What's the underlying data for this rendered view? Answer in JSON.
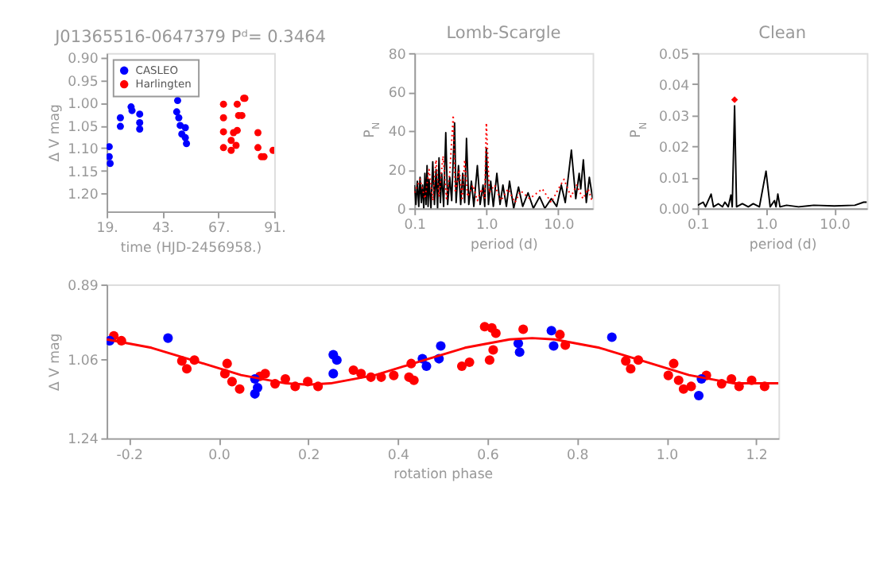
{
  "chart_data": [
    {
      "type": "scatter",
      "title": "J01365516-0647379 Pᵈ= 0.3464",
      "xlabel": "time (HJD-2456958.)",
      "ylabel": "Δ V mag",
      "xlim": [
        19,
        91
      ],
      "xticks": [
        {
          "value": 19,
          "label": "19."
        },
        {
          "value": 43,
          "label": "43."
        },
        {
          "value": 67,
          "label": "67."
        },
        {
          "value": 91,
          "label": "91."
        }
      ],
      "ylim": [
        1.24,
        0.89
      ],
      "yticks": [
        {
          "value": 0.9,
          "label": "0.90"
        },
        0.95,
        {
          "value": 1.0,
          "label": "1.00"
        },
        1.05,
        {
          "value": 1.1,
          "label": "1.10"
        },
        1.15,
        {
          "value": 1.2,
          "label": "1.20"
        }
      ],
      "legend": "top left",
      "marker": "circle",
      "grid": false,
      "series": [
        {
          "name": "CASLEO",
          "color": "#0000ff",
          "x": [
            20.1,
            20.1,
            20.5,
            24.9,
            24.9,
            29.5,
            29.9,
            33.2,
            33.2,
            33.2,
            49.5,
            49.1,
            50.0,
            50.6,
            51.3,
            52.8,
            52.8,
            53.3
          ],
          "values": [
            1.097,
            1.119,
            1.134,
            1.033,
            1.052,
            1.009,
            1.017,
            1.025,
            1.044,
            1.058,
            0.995,
            1.02,
            1.033,
            1.05,
            1.069,
            1.055,
            1.077,
            1.09
          ]
        },
        {
          "name": "Harlingten",
          "color": "#ff0000",
          "x": [
            69.2,
            69.2,
            69.2,
            69.2,
            72.5,
            72.5,
            73.5,
            75.1,
            75.7,
            75.1,
            74.6,
            77.9,
            77.1,
            78.4,
            84.0,
            84.0,
            85.5,
            86.6,
            90.5
          ],
          "values": [
            1.003,
            1.033,
            1.064,
            1.099,
            1.083,
            1.105,
            1.066,
            1.003,
            1.028,
            1.061,
            1.094,
            0.99,
            1.028,
            0.99,
            1.066,
            1.099,
            1.119,
            1.119,
            1.105
          ]
        }
      ]
    },
    {
      "type": "line",
      "title": "Lomb-Scargle",
      "xlabel": "period (d)",
      "ylabel": "P$_{N}$",
      "log": "x",
      "xlim": [
        0.1,
        30
      ],
      "xticks": [
        0.1,
        {
          "value": 1,
          "label": "1.0"
        },
        {
          "value": 10,
          "label": "10.0"
        }
      ],
      "ylim": [
        0,
        80
      ],
      "yticks": [
        0,
        20,
        40,
        60,
        80
      ],
      "grid": false,
      "series": [
        {
          "color": "#000000",
          "line_style": "solid",
          "x": [
            0.1,
            0.105,
            0.11,
            0.115,
            0.12,
            0.125,
            0.13,
            0.135,
            0.14,
            0.145,
            0.15,
            0.155,
            0.16,
            0.17,
            0.18,
            0.19,
            0.2,
            0.21,
            0.22,
            0.23,
            0.24,
            0.255,
            0.273,
            0.29,
            0.31,
            0.33,
            0.362,
            0.38,
            0.41,
            0.44,
            0.47,
            0.5,
            0.53,
            0.57,
            0.62,
            0.67,
            0.75,
            0.82,
            0.9,
            0.95,
            1.0,
            1.07,
            1.15,
            1.25,
            1.4,
            1.55,
            1.7,
            1.9,
            2.1,
            2.4,
            2.8,
            3.2,
            3.8,
            4.5,
            5.5,
            6.5,
            8,
            9.5,
            11,
            12.5,
            15.2,
            17.5,
            19.5,
            20.5,
            22.3,
            24.5,
            27,
            30
          ],
          "values": [
            12,
            2,
            14,
            1,
            16,
            3,
            12,
            0,
            18,
            2,
            22,
            1,
            15,
            0,
            24,
            2,
            20,
            0,
            26,
            3,
            18,
            1,
            39,
            2,
            16,
            4,
            44,
            3,
            22,
            2,
            18,
            3,
            36,
            2,
            14,
            1,
            22,
            2,
            12,
            1,
            31,
            2,
            14,
            1,
            18,
            2,
            12,
            1,
            14,
            0,
            11,
            1,
            8,
            0,
            6,
            0,
            5,
            1,
            12,
            3,
            30,
            5,
            18,
            10,
            25,
            3,
            16,
            5
          ]
        },
        {
          "color": "#ff0000",
          "line_style": "dotted",
          "x": [
            0.1,
            0.12,
            0.14,
            0.16,
            0.18,
            0.2,
            0.22,
            0.25,
            0.28,
            0.31,
            0.3464,
            0.37,
            0.42,
            0.46,
            0.5,
            0.55,
            0.65,
            0.75,
            0.85,
            0.95,
            1.0,
            1.1,
            1.3,
            1.6,
            2,
            2.5,
            3,
            4,
            6,
            8,
            10,
            12,
            15,
            18,
            22,
            26,
            30
          ],
          "values": [
            8,
            15,
            5,
            20,
            4,
            25,
            6,
            27,
            5,
            18,
            48,
            8,
            20,
            4,
            25,
            6,
            12,
            4,
            10,
            5,
            44,
            8,
            12,
            4,
            10,
            3,
            9,
            5,
            10,
            3,
            10,
            15,
            6,
            12,
            5,
            10,
            3
          ]
        }
      ]
    },
    {
      "type": "line",
      "title": "Clean",
      "xlabel": "period (d)",
      "ylabel": "P$_{N}$",
      "log": "x",
      "xlim": [
        0.1,
        30
      ],
      "xticks": [
        0.1,
        {
          "value": 1,
          "label": "1.0"
        },
        {
          "value": 10,
          "label": "10.0"
        }
      ],
      "ylim": [
        0,
        0.05
      ],
      "yticks": [
        {
          "value": 0,
          "label": "0.00"
        },
        0.01,
        0.02,
        0.03,
        0.04,
        0.05
      ],
      "grid": false,
      "series": [
        {
          "color": "#000000",
          "line_style": "solid",
          "x": [
            0.1,
            0.12,
            0.13,
            0.157,
            0.17,
            0.2,
            0.23,
            0.25,
            0.28,
            0.306,
            0.32,
            0.3464,
            0.37,
            0.45,
            0.55,
            0.65,
            0.8,
            1.0,
            1.15,
            1.33,
            1.4,
            1.49,
            1.6,
            2,
            3,
            5,
            10,
            20,
            27,
            30
          ],
          "values": [
            0.001,
            0.002,
            0.0005,
            0.0046,
            0.0005,
            0.0015,
            0.0005,
            0.002,
            0.0005,
            0.0043,
            0.0005,
            0.033,
            0.0005,
            0.0015,
            0.0005,
            0.0015,
            0.0005,
            0.012,
            0.0005,
            0.0025,
            0.0005,
            0.0046,
            0.0005,
            0.001,
            0.0005,
            0.001,
            0.0008,
            0.001,
            0.002,
            0.002
          ]
        },
        {
          "type": "scatter",
          "marker": "diamond",
          "color": "#ff0000",
          "x": [
            0.3464
          ],
          "values": [
            0.035
          ]
        }
      ]
    },
    {
      "type": "scatter",
      "xlabel": "rotation phase",
      "ylabel": "Δ V mag",
      "xlim": [
        -0.25,
        1.25
      ],
      "xticks": [
        -0.2,
        {
          "value": 0,
          "label": "0.0"
        },
        0.2,
        0.4,
        0.6,
        0.8,
        {
          "value": 1,
          "label": "1.0"
        },
        1.2
      ],
      "ylim": [
        1.24,
        0.89
      ],
      "yticks": [
        0.89,
        1.06,
        1.24
      ],
      "marker": "circle",
      "grid": false,
      "series": [
        {
          "color": "#ff0000",
          "x": [
            -0.234,
            -0.217,
            -0.082,
            -0.071,
            -0.054,
            0.019,
            0.014,
            0.03,
            0.047,
            0.092,
            0.104,
            0.149,
            0.126,
            0.171,
            0.199,
            0.222,
            0.301,
            0.318,
            0.34,
            0.363,
            0.391,
            0.425,
            0.436,
            0.43,
            0.543,
            0.56,
            0.594,
            0.61,
            0.619,
            0.605,
            0.613,
            0.68,
            0.762,
            0.774,
            0.909,
            0.92,
            0.937,
            1.004,
            1.016,
            1.027,
            1.038,
            1.055,
            1.089,
            1.123,
            1.145,
            1.162,
            1.19,
            1.219
          ],
          "values": [
            1.007,
            1.018,
            1.064,
            1.082,
            1.062,
            1.07,
            1.093,
            1.111,
            1.128,
            1.099,
            1.093,
            1.105,
            1.116,
            1.122,
            1.111,
            1.122,
            1.085,
            1.093,
            1.101,
            1.101,
            1.097,
            1.101,
            1.108,
            1.07,
            1.076,
            1.067,
            0.986,
            0.989,
            1.001,
            1.062,
            1.039,
            0.992,
            1.004,
            1.028,
            1.064,
            1.082,
            1.062,
            1.097,
            1.07,
            1.108,
            1.128,
            1.122,
            1.097,
            1.116,
            1.105,
            1.122,
            1.108,
            1.122
          ]
        },
        {
          "color": "#0000ff",
          "x": [
            -0.243,
            -0.113,
            0.081,
            0.081,
            0.087,
            0.256,
            0.264,
            0.256,
            0.455,
            0.464,
            0.496,
            0.492,
            0.669,
            0.672,
            0.743,
            0.748,
            0.878,
            1.078,
            1.072
          ],
          "values": [
            1.018,
            1.012,
            1.105,
            1.139,
            1.125,
            1.05,
            1.062,
            1.093,
            1.059,
            1.076,
            1.03,
            1.059,
            1.024,
            1.044,
            0.995,
            1.03,
            1.01,
            1.105,
            1.143
          ]
        },
        {
          "type": "line",
          "marker": "none",
          "color": "#ff0000",
          "line_style": "solid",
          "x": [
            -0.25,
            -0.15,
            -0.05,
            0.05,
            0.15,
            0.2,
            0.25,
            0.35,
            0.45,
            0.55,
            0.65,
            0.7,
            0.75,
            0.85,
            0.95,
            1.05,
            1.15,
            1.25
          ],
          "values": [
            1.015,
            1.034,
            1.065,
            1.096,
            1.115,
            1.118,
            1.115,
            1.096,
            1.065,
            1.034,
            1.015,
            1.012,
            1.015,
            1.034,
            1.065,
            1.096,
            1.115,
            1.115
          ]
        }
      ]
    }
  ]
}
